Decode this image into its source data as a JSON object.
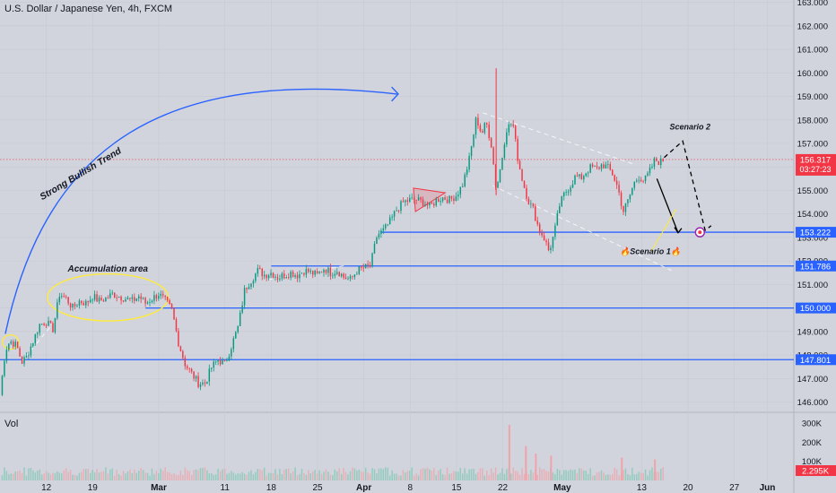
{
  "header": {
    "title": "U.S. Dollar / Japanese Yen, 4h, FXCM"
  },
  "volume_pane": {
    "label": "Vol"
  },
  "colors": {
    "background": "#d1d4dc",
    "up": "#089981",
    "down": "#f23645",
    "level": "#2962ff",
    "price_tag": "#f23645"
  },
  "chart_data": {
    "type": "candlestick",
    "instrument": "U.S. Dollar / Japanese Yen",
    "timeframe": "4h",
    "source": "FXCM",
    "ylim": [
      145.6,
      163.1
    ],
    "y_ticks": [
      "163.000",
      "162.000",
      "161.000",
      "160.000",
      "159.000",
      "158.000",
      "157.000",
      "156.000",
      "155.000",
      "154.000",
      "153.000",
      "152.000",
      "151.000",
      "150.000",
      "149.000",
      "148.000",
      "147.000",
      "146.000"
    ],
    "x_ticks": [
      {
        "label": "12",
        "day": 12
      },
      {
        "label": "19",
        "day": 19
      },
      {
        "label": "Mar",
        "day": 29
      },
      {
        "label": "11",
        "day": 39
      },
      {
        "label": "18",
        "day": 46
      },
      {
        "label": "25",
        "day": 53
      },
      {
        "label": "Apr",
        "day": 60
      },
      {
        "label": "8",
        "day": 67
      },
      {
        "label": "15",
        "day": 74
      },
      {
        "label": "22",
        "day": 81
      },
      {
        "label": "May",
        "day": 90
      },
      {
        "label": "13",
        "day": 102
      },
      {
        "label": "20",
        "day": 109
      },
      {
        "label": "27",
        "day": 116
      },
      {
        "label": "Jun",
        "day": 121
      }
    ],
    "xlim": [
      5,
      125
    ],
    "price_path": [
      [
        5.0,
        146.3
      ],
      [
        5.8,
        148.2
      ],
      [
        6.5,
        148.6
      ],
      [
        7.5,
        148.4
      ],
      [
        8.3,
        147.7
      ],
      [
        9.0,
        147.9
      ],
      [
        10.0,
        148.6
      ],
      [
        11.0,
        149.3
      ],
      [
        12.0,
        149.4
      ],
      [
        13.0,
        149.1
      ],
      [
        14.0,
        150.6
      ],
      [
        15.0,
        150.4
      ],
      [
        16.0,
        150.0
      ],
      [
        17.0,
        150.3
      ],
      [
        18.0,
        150.2
      ],
      [
        19.0,
        150.5
      ],
      [
        20.0,
        150.3
      ],
      [
        21.0,
        150.4
      ],
      [
        22.0,
        150.6
      ],
      [
        23.0,
        150.5
      ],
      [
        24.0,
        150.4
      ],
      [
        25.0,
        150.3
      ],
      [
        26.0,
        150.5
      ],
      [
        27.0,
        150.2
      ],
      [
        28.0,
        150.4
      ],
      [
        29.0,
        150.6
      ],
      [
        30.0,
        150.3
      ],
      [
        31.0,
        149.9
      ],
      [
        32.0,
        148.5
      ],
      [
        33.0,
        147.6
      ],
      [
        34.0,
        147.2
      ],
      [
        35.0,
        146.8
      ],
      [
        36.0,
        146.8
      ],
      [
        37.0,
        147.5
      ],
      [
        38.0,
        147.8
      ],
      [
        39.0,
        147.6
      ],
      [
        40.0,
        148.4
      ],
      [
        41.0,
        149.2
      ],
      [
        42.0,
        150.8
      ],
      [
        43.0,
        151.2
      ],
      [
        44.0,
        151.6
      ],
      [
        45.0,
        151.4
      ],
      [
        46.0,
        151.5
      ],
      [
        47.0,
        151.3
      ],
      [
        48.0,
        151.4
      ],
      [
        49.0,
        151.5
      ],
      [
        50.0,
        151.4
      ],
      [
        51.0,
        151.6
      ],
      [
        52.0,
        151.5
      ],
      [
        53.0,
        151.4
      ],
      [
        54.0,
        151.7
      ],
      [
        55.0,
        151.5
      ],
      [
        56.0,
        151.6
      ],
      [
        57.0,
        151.3
      ],
      [
        58.0,
        151.2
      ],
      [
        59.0,
        151.6
      ],
      [
        60.0,
        151.7
      ],
      [
        61.0,
        151.8
      ],
      [
        62.0,
        153.1
      ],
      [
        63.0,
        153.3
      ],
      [
        64.0,
        153.7
      ],
      [
        65.0,
        154.2
      ],
      [
        66.0,
        154.5
      ],
      [
        67.0,
        154.6
      ],
      [
        68.0,
        154.6
      ],
      [
        69.0,
        154.5
      ],
      [
        70.0,
        154.3
      ],
      [
        71.0,
        154.6
      ],
      [
        72.0,
        154.7
      ],
      [
        73.0,
        154.6
      ],
      [
        74.0,
        154.8
      ],
      [
        75.0,
        155.3
      ],
      [
        76.0,
        156.4
      ],
      [
        77.0,
        158.1
      ],
      [
        77.8,
        157.4
      ],
      [
        78.5,
        157.9
      ],
      [
        79.3,
        156.9
      ],
      [
        80.0,
        155.0
      ],
      [
        80.8,
        156.2
      ],
      [
        81.5,
        157.6
      ],
      [
        82.5,
        157.9
      ],
      [
        83.3,
        156.3
      ],
      [
        84.0,
        155.4
      ],
      [
        84.8,
        154.6
      ],
      [
        85.6,
        154.2
      ],
      [
        86.4,
        153.4
      ],
      [
        87.2,
        153.0
      ],
      [
        88.0,
        152.4
      ],
      [
        88.8,
        153.2
      ],
      [
        89.6,
        154.4
      ],
      [
        90.4,
        154.9
      ],
      [
        91.2,
        155.2
      ],
      [
        92.0,
        155.6
      ],
      [
        92.8,
        155.5
      ],
      [
        93.6,
        155.8
      ],
      [
        94.4,
        156.0
      ],
      [
        95.2,
        155.9
      ],
      [
        96.0,
        156.1
      ],
      [
        96.8,
        156.0
      ],
      [
        97.6,
        155.7
      ],
      [
        98.4,
        155.1
      ],
      [
        99.2,
        154.1
      ],
      [
        100.0,
        154.6
      ],
      [
        100.8,
        155.3
      ],
      [
        101.6,
        155.6
      ],
      [
        102.4,
        155.4
      ],
      [
        103.2,
        155.8
      ],
      [
        104.0,
        156.3
      ],
      [
        104.8,
        156.2
      ],
      [
        105.4,
        156.32
      ]
    ],
    "last_price": "156.317",
    "countdown": "03:27:23",
    "levels": [
      {
        "label": "153.222",
        "value": 153.222,
        "from_day": 62.5
      },
      {
        "label": "151.786",
        "value": 151.786,
        "from_day": 46.0
      },
      {
        "label": "150.000",
        "value": 150.0,
        "from_day": 27.0
      },
      {
        "label": "147.801",
        "value": 147.801,
        "from_day": 5.0
      }
    ],
    "annotations": {
      "trend_label": "Strong Bullish Trend",
      "accumulation_label": "Accumulation area",
      "scenario1_label": "🔥Scenario 1🔥",
      "scenario2_label": "Scenario 2"
    },
    "scenario1_path": [
      [
        104.3,
        155.5
      ],
      [
        107.5,
        153.2
      ]
    ],
    "scenario2_path": [
      [
        105.4,
        156.4
      ],
      [
        108.2,
        157.1
      ],
      [
        111.6,
        153.3
      ],
      [
        112.5,
        153.5
      ]
    ],
    "volume": {
      "y_ticks": [
        "300K",
        "200K",
        "100K"
      ],
      "ymax": 300000,
      "last": "2.295K",
      "spikes": [
        [
          82.0,
          290000
        ],
        [
          84.5,
          180000
        ],
        [
          86.0,
          140000
        ],
        [
          88.3,
          130000
        ],
        [
          99.0,
          120000
        ],
        [
          104.0,
          110000
        ]
      ]
    }
  }
}
